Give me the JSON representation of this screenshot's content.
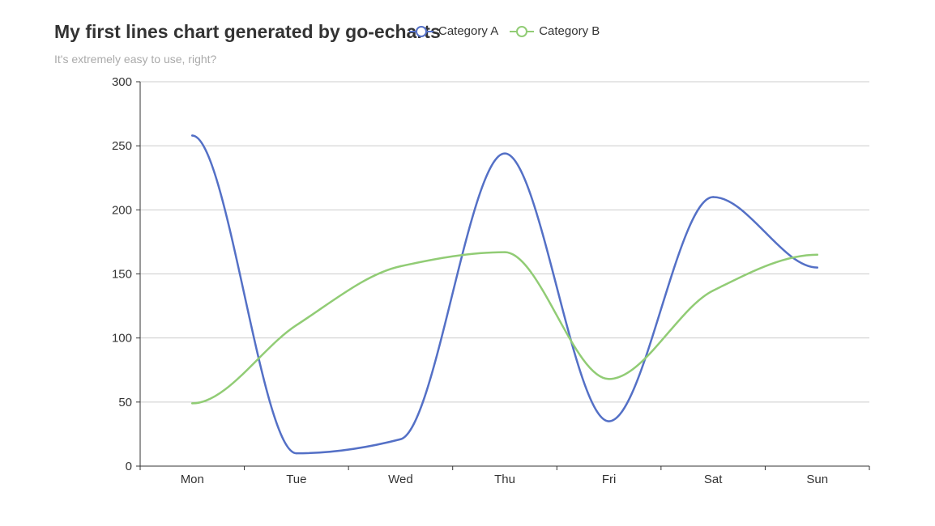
{
  "chart_data": {
    "type": "line",
    "title": "My first lines chart generated by go-echarts",
    "subtitle": "It's extremely easy to use, right?",
    "categories": [
      "Mon",
      "Tue",
      "Wed",
      "Thu",
      "Fri",
      "Sat",
      "Sun"
    ],
    "series": [
      {
        "name": "Category A",
        "color": "#5470c6",
        "values": [
          258,
          10,
          21,
          244,
          35,
          210,
          155
        ]
      },
      {
        "name": "Category B",
        "color": "#91cc75",
        "values": [
          49,
          110,
          156,
          167,
          68,
          137,
          165
        ]
      }
    ],
    "ylim": [
      0,
      300
    ],
    "yticks": [
      0,
      50,
      100,
      150,
      200,
      250,
      300
    ],
    "xlabel": "",
    "ylabel": "",
    "grid": true,
    "smooth": true,
    "legend_position": "top"
  }
}
